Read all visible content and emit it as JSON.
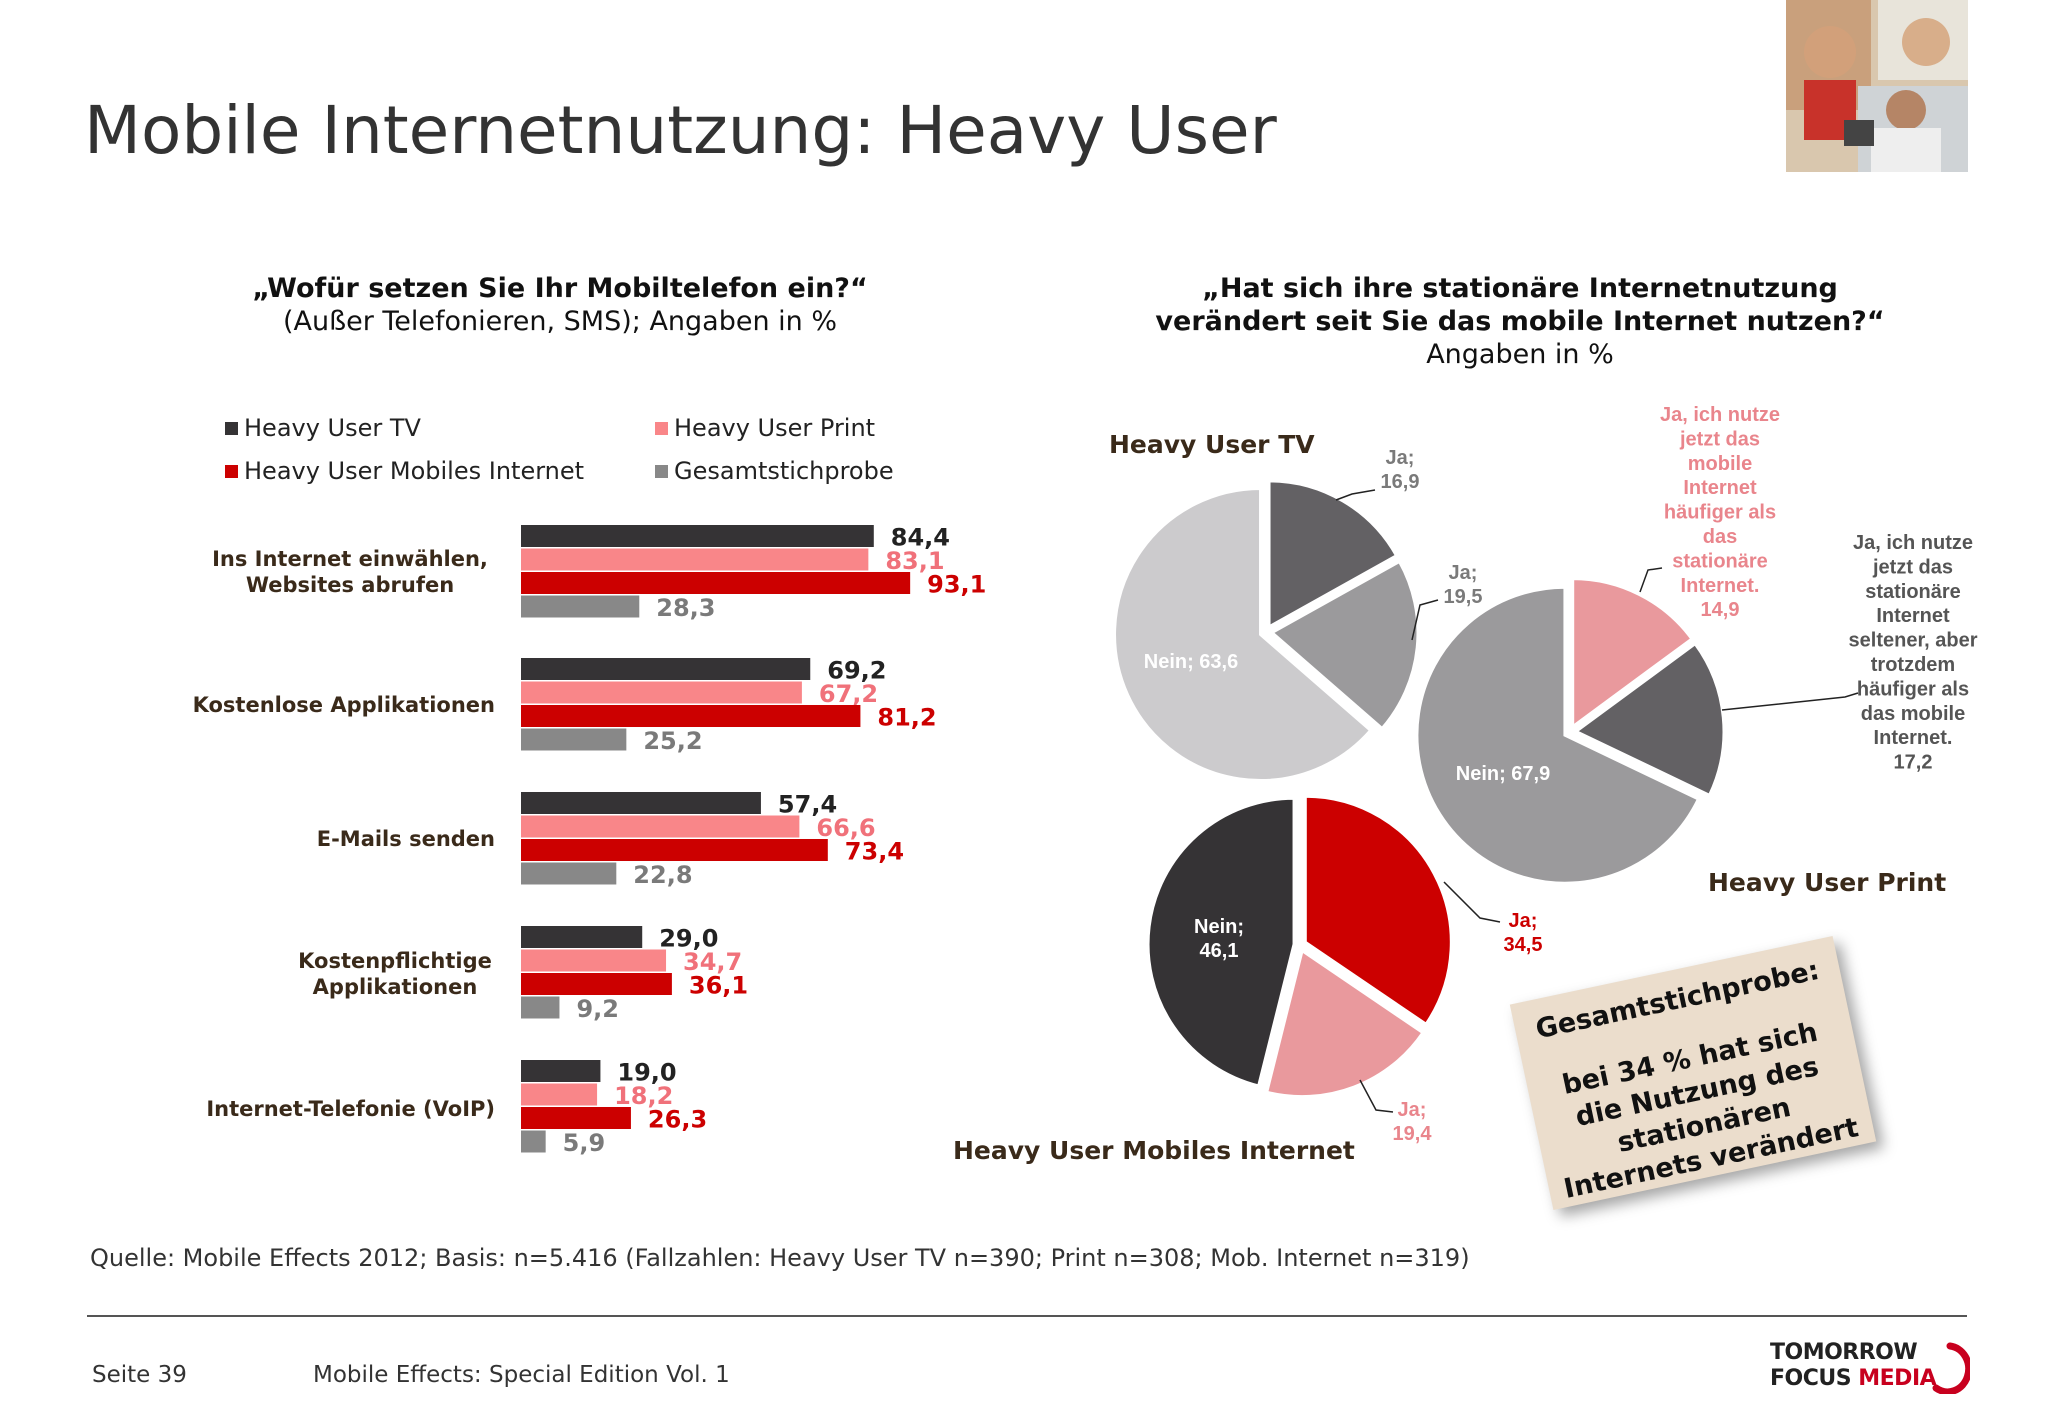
{
  "title": "Mobile Internetnutzung: Heavy User",
  "bar_question": {
    "line1": "„Wofür setzen Sie Ihr Mobiltelefon ein?“",
    "line2": "(Außer Telefonieren, SMS); Angaben in %"
  },
  "pie_question": {
    "line1": "„Hat sich ihre stationäre Internetnutzung",
    "line2": "verändert seit Sie das mobile Internet nutzen?“",
    "line3": "Angaben in %"
  },
  "colors": {
    "tv": "#353335",
    "print": "#f98689",
    "mobile": "#cc0000",
    "total": "#888888",
    "print_label": "#f0717a",
    "mobile_label": "#cc0000",
    "total_label": "#7a7a7a",
    "pie_tv_ja": "#636164",
    "pie_tv_ja2": "#9b9a9c",
    "pie_tv_nein": "#cccbcd",
    "pie_print_ja_mobile": "#e9999d",
    "pie_print_ja_selten": "#636164",
    "pie_print_nein": "#9b9a9c",
    "pie_mob_ja": "#cc0000",
    "pie_mob_ja2": "#e9999d",
    "pie_mob_nein": "#353335"
  },
  "chart_data": [
    {
      "type": "bar",
      "orientation": "horizontal",
      "categories": [
        "Ins Internet einwählen, Websites abrufen",
        "Kostenlose Applikationen",
        "E-Mails senden",
        "Kostenpflichtige Applikationen",
        "Internet-Telefonie (VoIP)"
      ],
      "category_lines": [
        [
          "Ins Internet einwählen,",
          "Websites abrufen"
        ],
        [
          "Kostenlose Applikationen"
        ],
        [
          "E-Mails senden"
        ],
        [
          "Kostenpflichtige",
          "Applikationen"
        ],
        [
          "Internet-Telefonie (VoIP)"
        ]
      ],
      "series": [
        {
          "name": "Heavy User TV",
          "values": [
            84.4,
            69.2,
            57.4,
            29.0,
            19.0
          ],
          "labels": [
            "84,4",
            "69,2",
            "57,4",
            "29,0",
            "19,0"
          ]
        },
        {
          "name": "Heavy User Print",
          "values": [
            83.1,
            67.2,
            66.6,
            34.7,
            18.2
          ],
          "labels": [
            "83,1",
            "67,2",
            "66,6",
            "34,7",
            "18,2"
          ]
        },
        {
          "name": "Heavy User Mobiles Internet",
          "values": [
            93.1,
            81.2,
            73.4,
            36.1,
            26.3
          ],
          "labels": [
            "93,1",
            "81,2",
            "73,4",
            "36,1",
            "26,3"
          ]
        },
        {
          "name": "Gesamtstichprobe",
          "values": [
            28.3,
            25.2,
            22.8,
            9.2,
            5.9
          ],
          "labels": [
            "28,3",
            "25,2",
            "22,8",
            "9,2",
            "5,9"
          ]
        }
      ],
      "xlim": [
        0,
        100
      ],
      "legend": "top",
      "grid": false
    },
    {
      "type": "pie",
      "title": "Heavy User TV",
      "slices": [
        {
          "label": "Ja; 16,9",
          "value": 16.9
        },
        {
          "label": "Ja; 19,5",
          "value": 19.5
        },
        {
          "label": "Nein; 63,6",
          "value": 63.6
        }
      ]
    },
    {
      "type": "pie",
      "title": "Heavy User Print",
      "slices": [
        {
          "label": "Ja, ich nutze jetzt das mobile Internet häufiger als das stationäre Internet. 14,9",
          "value": 14.9
        },
        {
          "label": "Ja, ich nutze jetzt das stationäre Internet seltener, aber trotzdem häufiger als das mobile Internet. 17,2",
          "value": 17.2
        },
        {
          "label": "Nein; 67,9",
          "value": 67.9
        }
      ]
    },
    {
      "type": "pie",
      "title": "Heavy User Mobiles Internet",
      "slices": [
        {
          "label": "Ja; 34,5",
          "value": 34.5
        },
        {
          "label": "Ja; 19,4",
          "value": 19.4
        },
        {
          "label": "Nein; 46,1",
          "value": 46.1
        }
      ]
    }
  ],
  "pie_labels": {
    "tv_ja1": [
      "Ja;",
      "16,9"
    ],
    "tv_ja2": [
      "Ja;",
      "19,5"
    ],
    "tv_nein": [
      "Nein; 63,6"
    ],
    "print_mobile": [
      "Ja, ich nutze",
      "jetzt das",
      "mobile",
      "Internet",
      "häufiger als",
      "das",
      "stationäre",
      "Internet.",
      "14,9"
    ],
    "print_selten": [
      "Ja, ich nutze",
      "jetzt das",
      "stationäre",
      "Internet",
      "seltener, aber",
      "trotzdem",
      "häufiger als",
      "das mobile",
      "Internet.",
      "17,2"
    ],
    "print_nein": [
      "Nein; 67,9"
    ],
    "mob_ja1": [
      "Ja;",
      "34,5"
    ],
    "mob_ja2": [
      "Ja;",
      "19,4"
    ],
    "mob_nein": [
      "Nein;",
      "46,1"
    ]
  },
  "note": {
    "heading": "Gesamtstichprobe:",
    "text": "bei 34 % hat sich die Nutzung des stationären Internets verändert"
  },
  "source": "Quelle: Mobile Effects 2012; Basis: n=5.416 (Fallzahlen: Heavy User TV n=390; Print n=308; Mob. Internet n=319)",
  "footer": {
    "page": "Seite 39",
    "publication": "Mobile Effects: Special Edition Vol. 1"
  },
  "logo": {
    "line1": "TOMORROW",
    "line2a": "FOCUS",
    "line2b": "MEDIA"
  }
}
